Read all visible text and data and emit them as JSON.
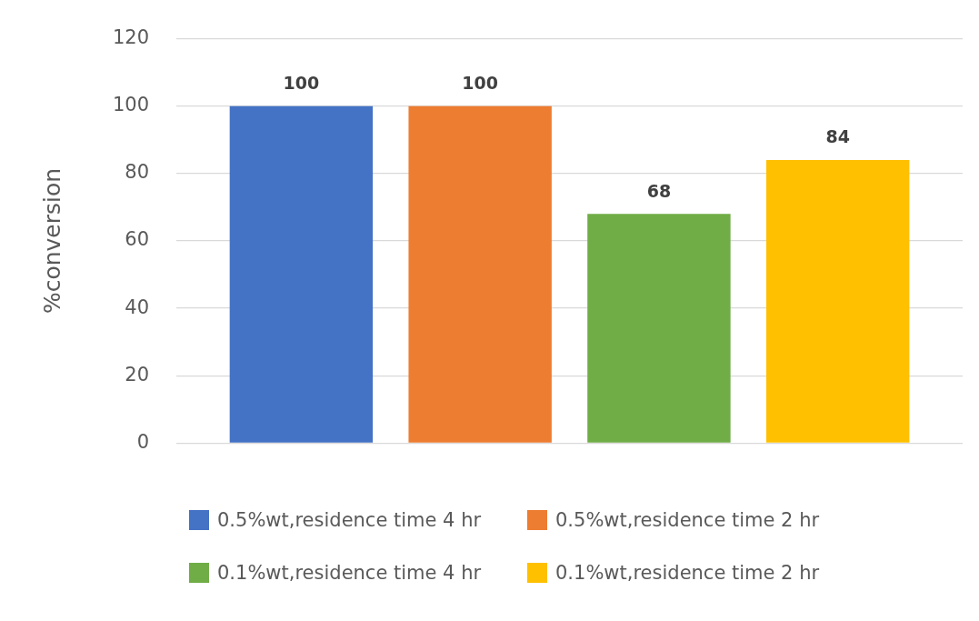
{
  "chart_data": {
    "type": "bar",
    "ylabel": "%conversion",
    "categories": [
      null
    ],
    "series": [
      {
        "name": "0.5%wt,residence time 4 hr",
        "color": "#4472c4",
        "values": [
          100
        ]
      },
      {
        "name": "0.5%wt,residence time 2 hr",
        "color": "#ed7d31",
        "values": [
          100
        ]
      },
      {
        "name": "0.1%wt,residence time 4 hr",
        "color": "#70ad47",
        "values": [
          68
        ]
      },
      {
        "name": "0.1%wt,residence time 2 hr",
        "color": "#ffc000",
        "values": [
          84
        ]
      }
    ],
    "ylim": [
      0,
      120
    ],
    "yticks": [
      0,
      20,
      40,
      60,
      80,
      100,
      120
    ],
    "grid": "y",
    "legend": "bottom",
    "data_labels": true
  }
}
